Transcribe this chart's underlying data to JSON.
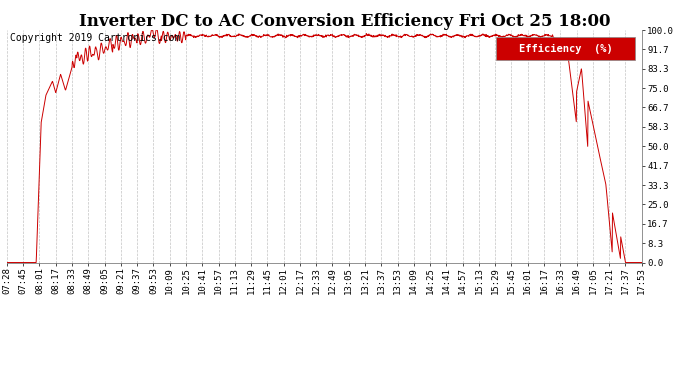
{
  "title": "Inverter DC to AC Conversion Efficiency Fri Oct 25 18:00",
  "copyright": "Copyright 2019 Cartronics.com",
  "legend_label": "Efficiency  (%)",
  "legend_bg": "#cc0000",
  "legend_fg": "#ffffff",
  "line_color": "#cc0000",
  "bg_color": "#ffffff",
  "grid_color": "#aaaaaa",
  "ylabel_right": [
    "0.0",
    "8.3",
    "16.7",
    "25.0",
    "33.3",
    "41.7",
    "50.0",
    "58.3",
    "66.7",
    "75.0",
    "83.3",
    "91.7",
    "100.0"
  ],
  "yticks": [
    0.0,
    8.3,
    16.7,
    25.0,
    33.3,
    41.7,
    50.0,
    58.3,
    66.7,
    75.0,
    83.3,
    91.7,
    100.0
  ],
  "ylim": [
    0.0,
    100.0
  ],
  "xtick_labels": [
    "07:28",
    "07:45",
    "08:01",
    "08:17",
    "08:33",
    "08:49",
    "09:05",
    "09:21",
    "09:37",
    "09:53",
    "10:09",
    "10:25",
    "10:41",
    "10:57",
    "11:13",
    "11:29",
    "11:45",
    "12:01",
    "12:17",
    "12:33",
    "12:49",
    "13:05",
    "13:21",
    "13:37",
    "13:53",
    "14:09",
    "14:25",
    "14:41",
    "14:57",
    "15:13",
    "15:29",
    "15:45",
    "16:01",
    "16:17",
    "16:33",
    "16:49",
    "17:05",
    "17:21",
    "17:37",
    "17:53"
  ],
  "title_fontsize": 12,
  "copyright_fontsize": 7,
  "tick_fontsize": 6.5,
  "legend_fontsize": 7.5
}
